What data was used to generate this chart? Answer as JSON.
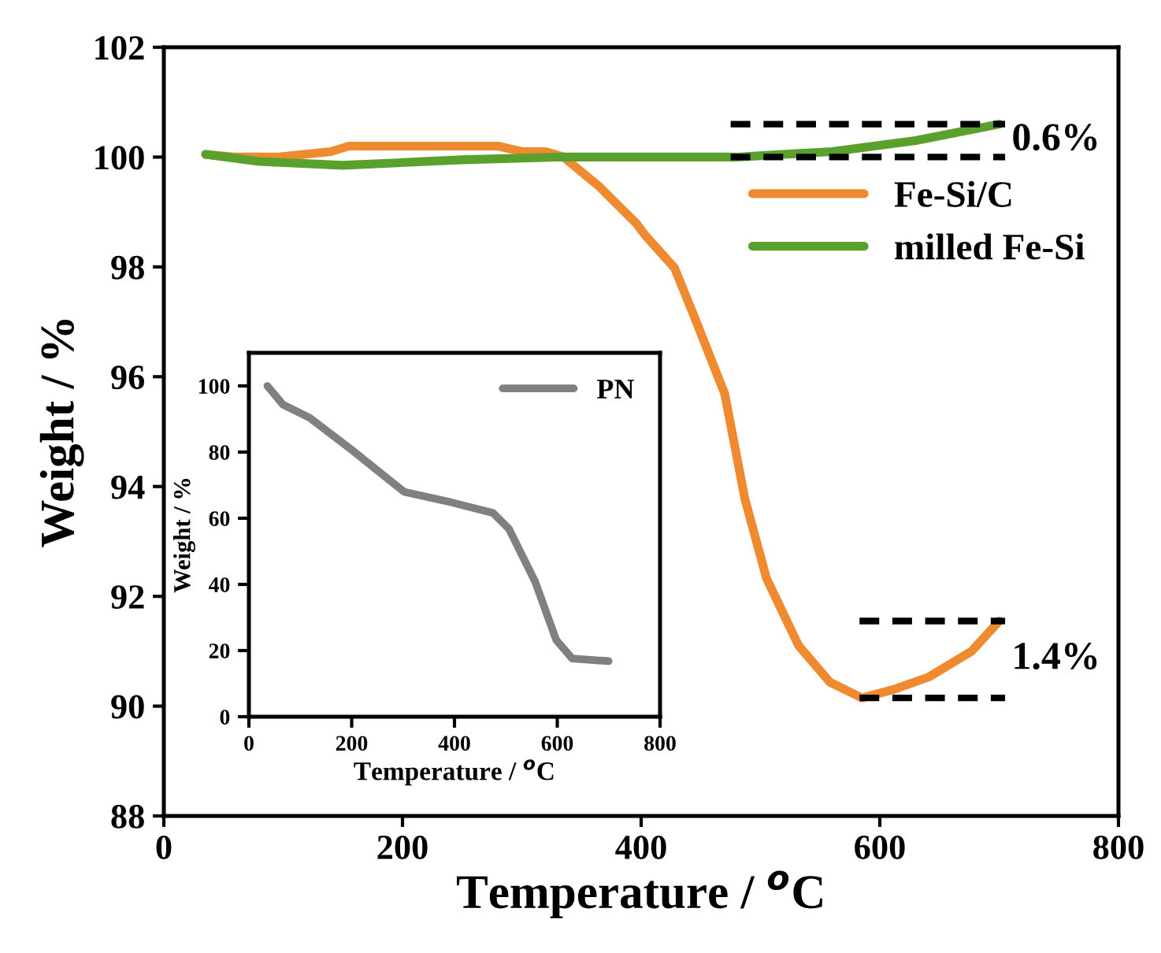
{
  "chart_data": [
    {
      "type": "line",
      "xlabel": "Temperature / $^{o}$C",
      "ylabel": "Weight / %",
      "xlim": [
        0,
        800
      ],
      "ylim": [
        88,
        102
      ],
      "xticks": [
        0,
        200,
        400,
        600,
        800
      ],
      "yticks": [
        88,
        90,
        92,
        94,
        96,
        98,
        100,
        102
      ],
      "legend": "top right",
      "grid": false,
      "series": [
        {
          "name": "Fe-Si/C",
          "color": "#f08a30",
          "x": [
            35,
            60,
            95,
            140,
            155,
            200,
            280,
            300,
            320,
            335,
            364,
            396,
            404,
            428,
            444,
            470,
            487,
            505,
            532,
            558,
            585,
            611,
            641,
            677,
            700
          ],
          "values": [
            100.05,
            100.0,
            100.0,
            100.1,
            100.2,
            100.2,
            100.2,
            100.1,
            100.1,
            100.0,
            99.48,
            98.79,
            98.56,
            97.98,
            97.12,
            95.69,
            93.77,
            92.33,
            91.1,
            90.44,
            90.15,
            90.3,
            90.53,
            91.0,
            91.55
          ]
        },
        {
          "name": "milled Fe-Si",
          "color": "#5aa02c",
          "x": [
            35,
            80,
            150,
            250,
            330,
            480,
            560,
            630,
            700
          ],
          "values": [
            100.05,
            99.92,
            99.85,
            99.95,
            100.0,
            100.0,
            100.1,
            100.3,
            100.6
          ]
        },
        {
          "color": "#000000",
          "line_style": "dashed",
          "x": [
            475,
            705
          ],
          "values": [
            100.6,
            100.6
          ]
        },
        {
          "color": "#000000",
          "line_style": "dashed",
          "x": [
            475,
            705
          ],
          "values": [
            100.0,
            100.0
          ]
        },
        {
          "color": "#000000",
          "line_style": "dashed",
          "x": [
            583,
            705
          ],
          "values": [
            91.55,
            91.55
          ]
        },
        {
          "color": "#000000",
          "line_style": "dashed",
          "x": [
            583,
            705
          ],
          "values": [
            90.15,
            90.15
          ]
        }
      ],
      "annotations": [
        "0.6%",
        "1.4%"
      ]
    },
    {
      "type": "line",
      "xlabel": "Temperature / $^{o}$C",
      "ylabel": "Weight / %",
      "xlim": [
        0,
        800
      ],
      "ylim": [
        0,
        110
      ],
      "xticks": [
        0,
        200,
        400,
        600,
        800
      ],
      "yticks": [
        0,
        20,
        40,
        60,
        80,
        100
      ],
      "legend": "top right",
      "grid": false,
      "series": [
        {
          "name": "PN",
          "color": "#808080",
          "x": [
            36,
            66,
            118,
            199,
            302,
            394,
            475,
            506,
            557,
            598,
            629,
            700
          ],
          "values": [
            100,
            94.4,
            90.4,
            80.8,
            68,
            64.8,
            61.6,
            56.8,
            40.8,
            23.2,
            17.6,
            16.8
          ]
        }
      ]
    }
  ]
}
